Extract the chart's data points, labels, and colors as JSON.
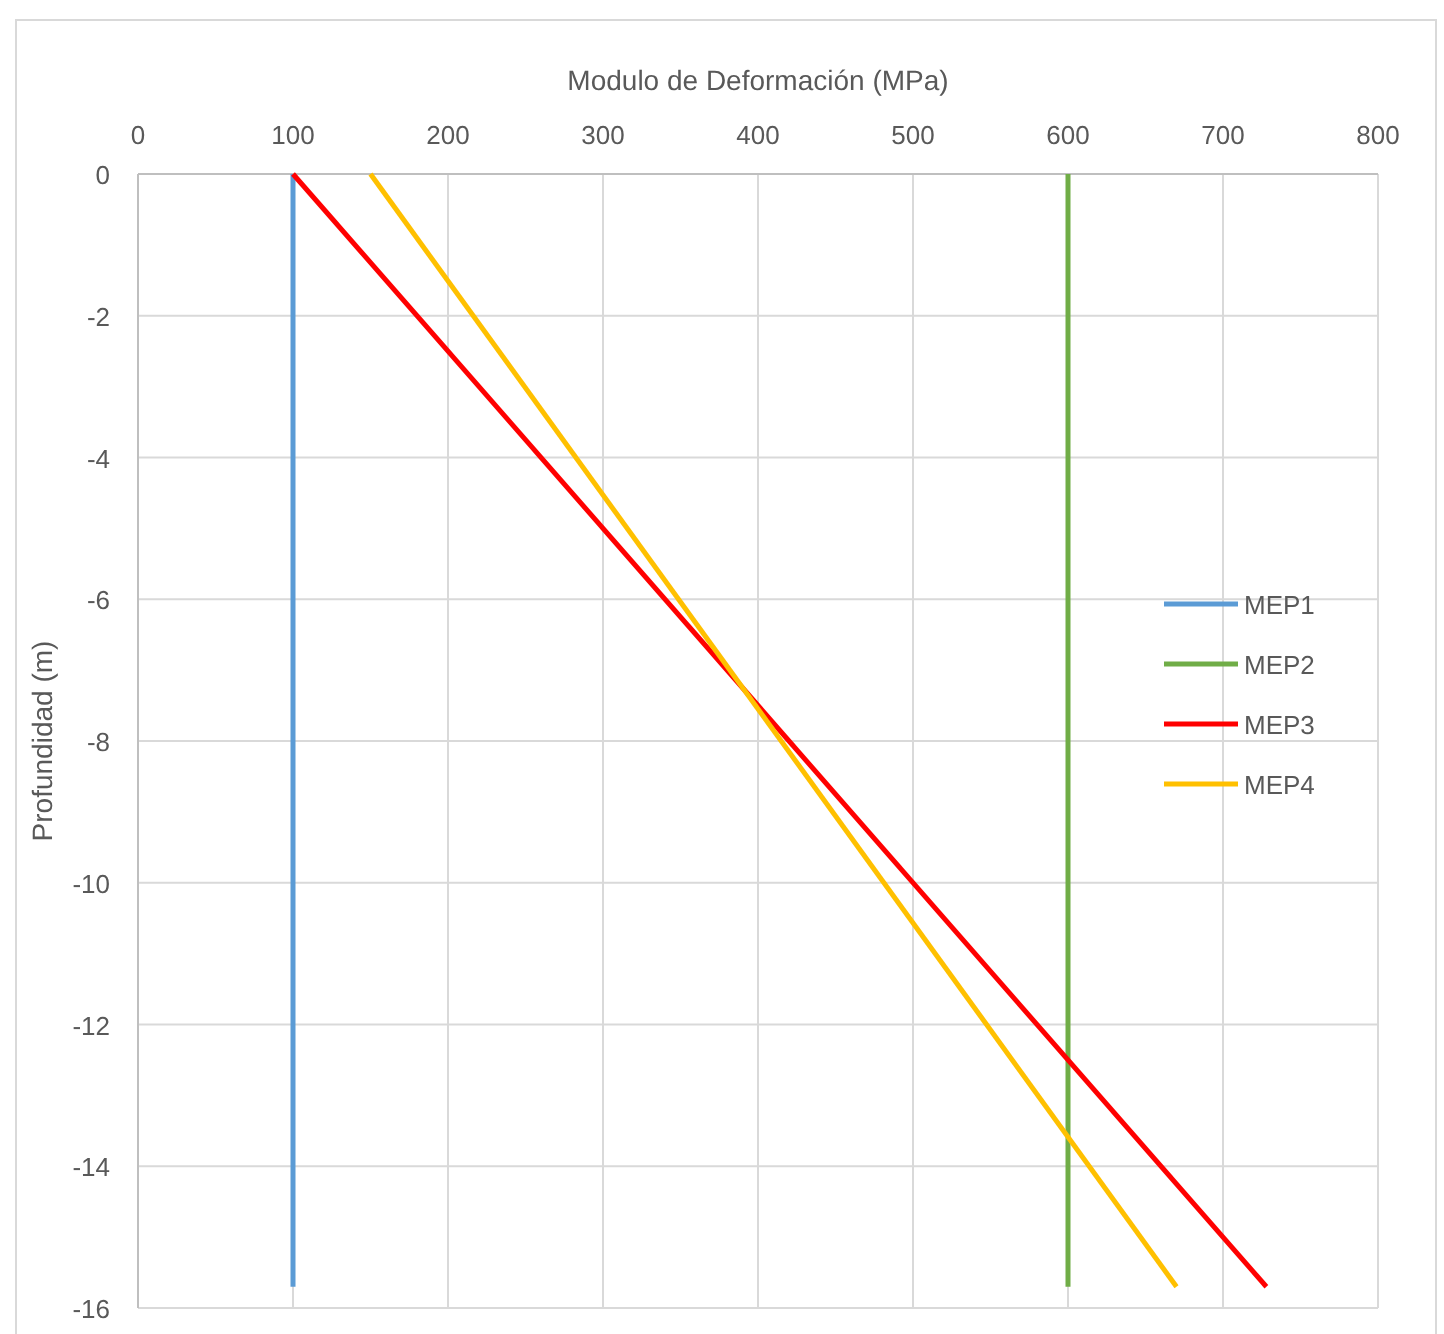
{
  "chart_data": {
    "type": "line",
    "xlabel": "Modulo de Deformación (MPa)",
    "ylabel": "Profundidad (m)",
    "xlim": [
      0,
      800
    ],
    "xticks": [
      0,
      100,
      200,
      300,
      400,
      500,
      600,
      700,
      800
    ],
    "ylim": [
      -16,
      0
    ],
    "yticks": [
      -16,
      -14,
      -12,
      -10,
      -8,
      -6,
      -4,
      -2,
      0
    ],
    "grid": true,
    "legend": "right",
    "marker": "none",
    "line_style": "solid",
    "series": [
      {
        "name": "MEP1",
        "color": "#5b9bd5",
        "x": [
          100,
          100
        ],
        "values": [
          0,
          -15.7
        ]
      },
      {
        "name": "MEP2",
        "color": "#70ad47",
        "x": [
          600,
          600
        ],
        "values": [
          0,
          -15.7
        ]
      },
      {
        "name": "MEP3",
        "color": "#ff0000",
        "x": [
          100,
          728
        ],
        "values": [
          0,
          -15.7
        ]
      },
      {
        "name": "MEP4",
        "color": "#ffc000",
        "x": [
          150,
          670
        ],
        "values": [
          0,
          -15.7
        ]
      }
    ]
  }
}
